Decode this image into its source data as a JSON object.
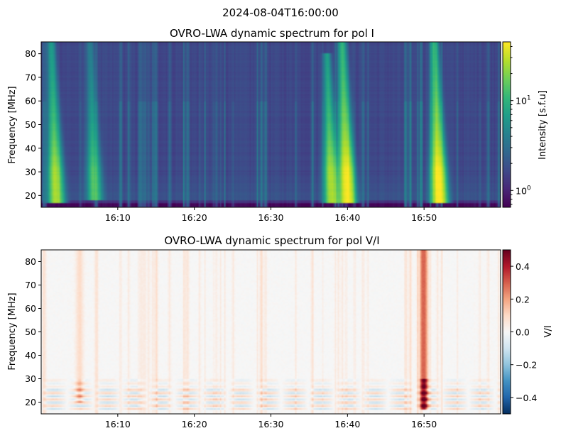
{
  "suptitle": "2024-08-04T16:00:00",
  "chart_data": [
    {
      "type": "heatmap",
      "title": "OVRO-LWA dynamic spectrum for pol I",
      "xlabel": "",
      "ylabel": "Frequency [MHz]",
      "xlim": [
        "16:00",
        "17:00"
      ],
      "ylim": [
        15,
        85
      ],
      "xticks": [
        "16:10",
        "16:20",
        "16:30",
        "16:40",
        "16:50"
      ],
      "yticks": [
        20,
        30,
        40,
        50,
        60,
        70,
        80
      ],
      "colorbar": {
        "label": "Intensity [s.f.u]",
        "scale": "log",
        "range": [
          0.65,
          45
        ],
        "ticks": [
          {
            "value": 1,
            "label": "10",
            "exp": "0"
          },
          {
            "value": 10,
            "label": "10",
            "exp": "1"
          }
        ],
        "colormap": "viridis"
      },
      "features": [
        {
          "type": "burst",
          "time": "16:02",
          "f_low": 17,
          "f_high": 85,
          "peak": 25
        },
        {
          "type": "burst",
          "time": "16:07",
          "f_low": 18,
          "f_high": 85,
          "peak": 12
        },
        {
          "type": "burst",
          "time": "16:38",
          "f_low": 17,
          "f_high": 80,
          "peak": 25
        },
        {
          "type": "burst",
          "time": "16:40",
          "f_low": 17,
          "f_high": 85,
          "peak": 45
        },
        {
          "type": "burst",
          "time": "16:52",
          "f_low": 17,
          "f_high": 85,
          "peak": 45
        }
      ]
    },
    {
      "type": "heatmap",
      "title": "OVRO-LWA dynamic spectrum for pol V/I",
      "xlabel": "",
      "ylabel": "Frequency [MHz]",
      "xlim": [
        "16:00",
        "17:00"
      ],
      "ylim": [
        15,
        85
      ],
      "xticks": [
        "16:10",
        "16:20",
        "16:30",
        "16:40",
        "16:50"
      ],
      "yticks": [
        20,
        30,
        40,
        50,
        60,
        70,
        80
      ],
      "colorbar": {
        "label": "V/I",
        "scale": "linear",
        "range": [
          -0.5,
          0.5
        ],
        "ticks": [
          {
            "value": 0.4,
            "label": "0.4"
          },
          {
            "value": 0.2,
            "label": "0.2"
          },
          {
            "value": 0.0,
            "label": "0.0"
          },
          {
            "value": -0.2,
            "label": "−0.2"
          },
          {
            "value": -0.4,
            "label": "−0.4"
          }
        ],
        "colormap": "RdBu_r"
      },
      "features": [
        {
          "type": "polarized",
          "time": "16:50",
          "f_low": 17,
          "f_high": 85,
          "peak": 0.5
        },
        {
          "type": "polarized",
          "time": "16:05",
          "f_low": 20,
          "f_high": 85,
          "peak": 0.15
        }
      ]
    }
  ]
}
